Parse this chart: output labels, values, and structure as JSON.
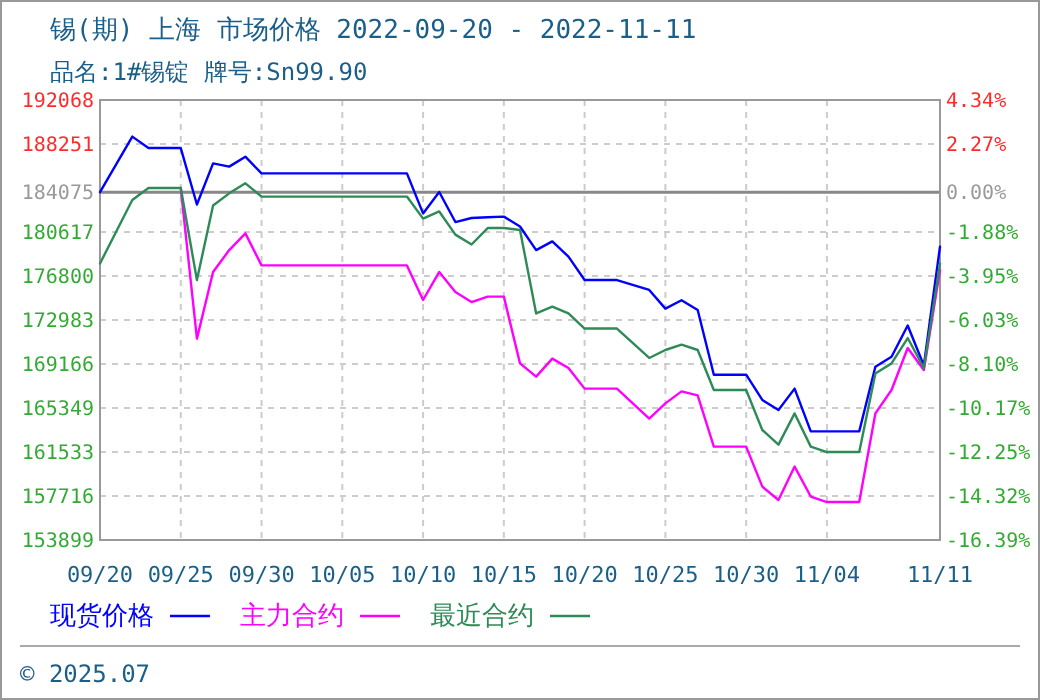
{
  "chart_data": {
    "type": "line",
    "title": "锡(期) 上海 市场价格 2022-09-20 - 2022-11-11",
    "subtitle": "品名:1#锡锭 牌号:Sn99.90",
    "annotations": [
      "© 2025.07"
    ],
    "x": [
      "2022-09-20",
      "2022-09-22",
      "2022-09-23",
      "2022-09-25",
      "2022-09-26",
      "2022-09-27",
      "2022-09-28",
      "2022-09-29",
      "2022-09-30",
      "2022-10-09",
      "2022-10-10",
      "2022-10-11",
      "2022-10-12",
      "2022-10-13",
      "2022-10-14",
      "2022-10-15",
      "2022-10-16",
      "2022-10-17",
      "2022-10-18",
      "2022-10-19",
      "2022-10-20",
      "2022-10-22",
      "2022-10-24",
      "2022-10-25",
      "2022-10-26",
      "2022-10-27",
      "2022-10-28",
      "2022-10-30",
      "2022-10-31",
      "2022-11-01",
      "2022-11-02",
      "2022-11-03",
      "2022-11-04",
      "2022-11-06",
      "2022-11-07",
      "2022-11-08",
      "2022-11-09",
      "2022-11-10",
      "2022-11-11"
    ],
    "series": [
      {
        "name": "现货价格",
        "color": "#0000ff",
        "values": [
          184075,
          188890,
          187900,
          187900,
          183000,
          186570,
          186290,
          187150,
          185700,
          185700,
          182230,
          184090,
          181480,
          181830,
          181900,
          181950,
          181090,
          179050,
          179800,
          178480,
          176450,
          176450,
          175590,
          173970,
          174700,
          173850,
          168240,
          168240,
          166050,
          165170,
          167030,
          163320,
          163320,
          163320,
          168930,
          169800,
          172510,
          169040,
          179350
        ]
      },
      {
        "name": "主力合约",
        "color": "#ff00ff",
        "values": [
          null,
          null,
          null,
          184430,
          171370,
          177150,
          179050,
          180500,
          177720,
          177720,
          174720,
          177150,
          175410,
          174540,
          175010,
          175010,
          169220,
          168070,
          169630,
          168820,
          167030,
          167030,
          164430,
          165750,
          166790,
          166440,
          162000,
          162000,
          158530,
          157370,
          160270,
          157670,
          157190,
          157190,
          164880,
          166910,
          170550,
          168640,
          177320
        ]
      },
      {
        "name": "最近合约",
        "color": "#2e8b57",
        "values": [
          177890,
          183390,
          184430,
          184430,
          176450,
          182920,
          183970,
          184840,
          183690,
          183690,
          181780,
          182400,
          180390,
          179530,
          180960,
          180960,
          180790,
          173550,
          174140,
          173550,
          172240,
          172240,
          169690,
          170380,
          170850,
          170380,
          166910,
          166910,
          163440,
          162170,
          164880,
          162000,
          161530,
          161530,
          168350,
          169220,
          171420,
          168820,
          177890
        ]
      }
    ],
    "xlim": [
      "2022-09-20",
      "2022-11-11"
    ],
    "xticks": [
      {
        "value": "2022-09-20",
        "label": "09/20"
      },
      {
        "value": "2022-09-25",
        "label": "09/25"
      },
      {
        "value": "2022-09-30",
        "label": "09/30"
      },
      {
        "value": "2022-10-05",
        "label": "10/05"
      },
      {
        "value": "2022-10-10",
        "label": "10/10"
      },
      {
        "value": "2022-10-15",
        "label": "10/15"
      },
      {
        "value": "2022-10-20",
        "label": "10/20"
      },
      {
        "value": "2022-10-25",
        "label": "10/25"
      },
      {
        "value": "2022-10-30",
        "label": "10/30"
      },
      {
        "value": "2022-11-04",
        "label": "11/04"
      },
      {
        "value": "2022-11-11",
        "label": "11/11"
      }
    ],
    "ylim": [
      153899,
      192068
    ],
    "yticks": [
      153899,
      157716,
      161533,
      165349,
      169166,
      172983,
      176800,
      180617,
      184075,
      188251,
      192068
    ],
    "y2lim": [
      -16.39,
      4.34
    ],
    "y2ticks": [
      {
        "value": -16.39,
        "label": "-16.39%"
      },
      {
        "value": -14.32,
        "label": "-14.32%"
      },
      {
        "value": -12.25,
        "label": "-12.25%"
      },
      {
        "value": -10.17,
        "label": "-10.17%"
      },
      {
        "value": -8.1,
        "label": "-8.10%"
      },
      {
        "value": -6.03,
        "label": "-6.03%"
      },
      {
        "value": -3.95,
        "label": "-3.95%"
      },
      {
        "value": -1.88,
        "label": "-1.88%"
      },
      {
        "value": 0,
        "label": "0.00%"
      },
      {
        "value": 2.27,
        "label": "2.27%"
      },
      {
        "value": 4.34,
        "label": "4.34%"
      }
    ],
    "ref_lines": [
      {
        "axis": "y",
        "value": 184075,
        "color": "#888888"
      }
    ],
    "grid": true,
    "legend": "bottom",
    "line_style": "solid"
  }
}
